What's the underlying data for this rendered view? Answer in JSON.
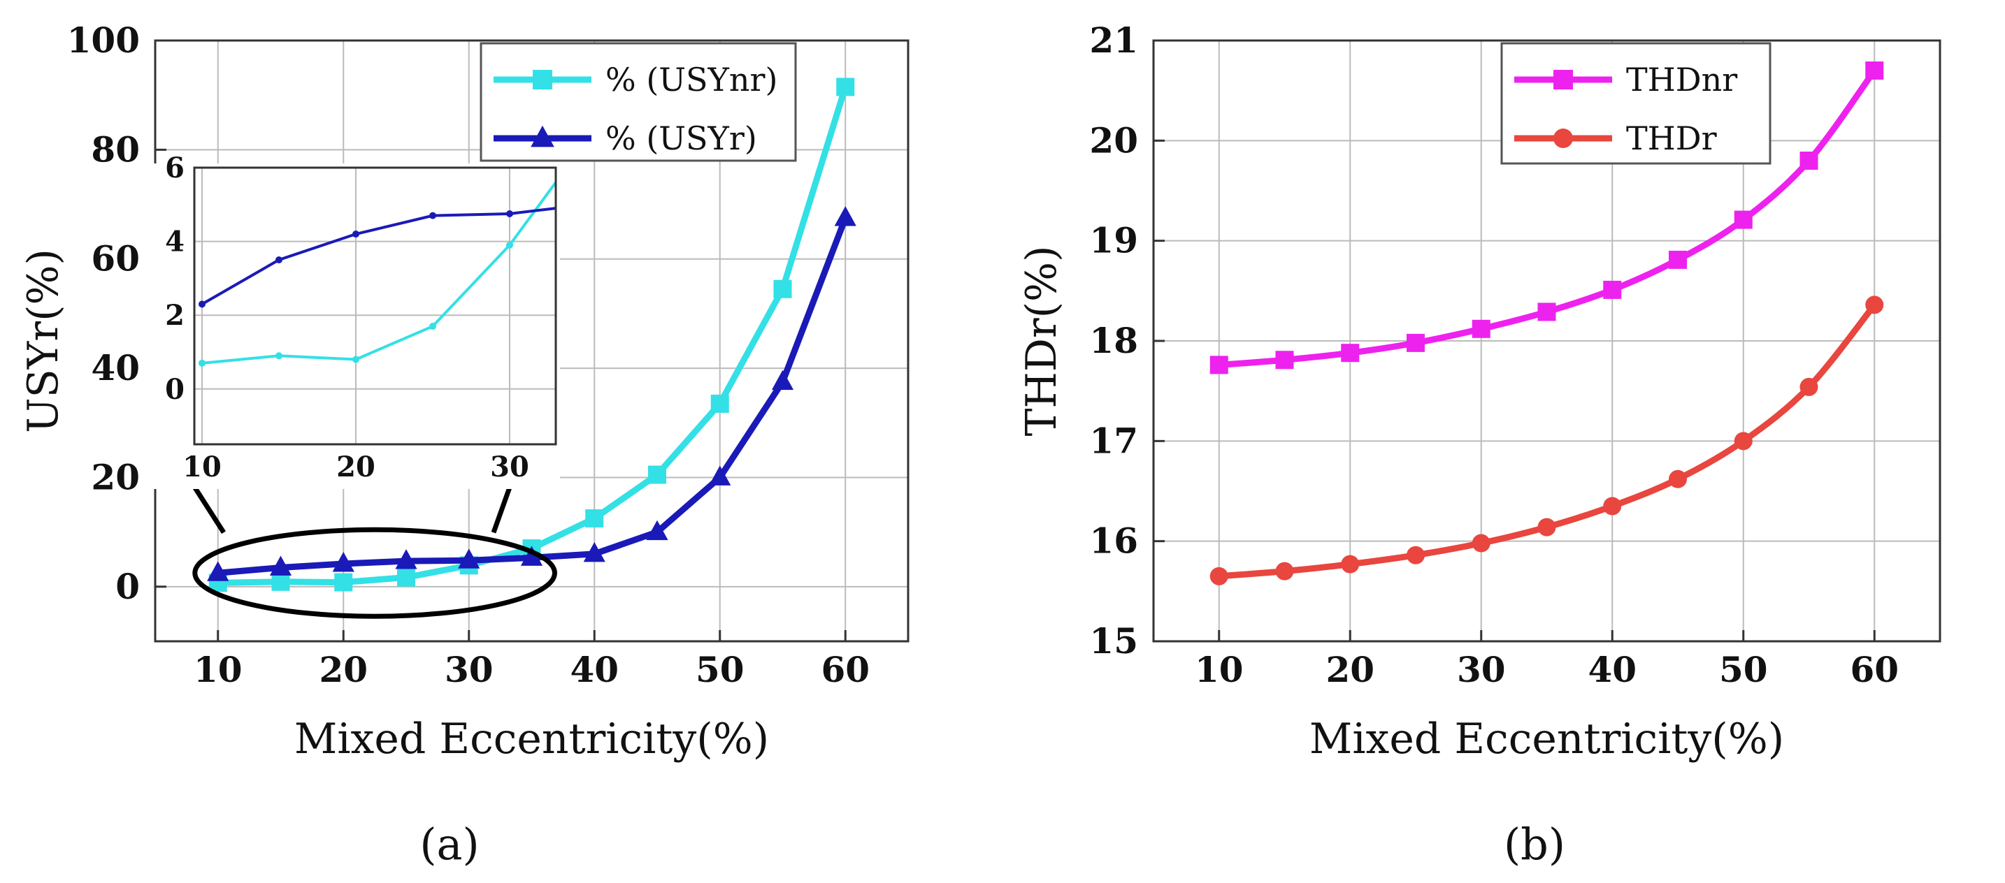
{
  "panel_labels": [
    "(a)",
    "(b)"
  ],
  "colors": {
    "usynr": "#33e0e6",
    "usyr": "#1a1ab8",
    "thdnr": "#ee22ee",
    "thdr": "#e8463e",
    "grid": "#bbbbbb",
    "ellipse": "#000000"
  },
  "chart_data": [
    {
      "type": "line",
      "id": "a",
      "xlabel": "Mixed Eccentricity(%)",
      "ylabel": "USYr(%)",
      "xlim": [
        5,
        65
      ],
      "ylim": [
        -10,
        100
      ],
      "xticks": [
        10,
        20,
        30,
        40,
        50,
        60
      ],
      "yticks": [
        0,
        20,
        40,
        60,
        80,
        100
      ],
      "grid": true,
      "legend_position": "top-right",
      "x": [
        10,
        15,
        20,
        25,
        30,
        35,
        40,
        45,
        50,
        55,
        60
      ],
      "series": [
        {
          "name": "% (USYnr)",
          "marker": "square",
          "color": "#33e0e6",
          "values": [
            0.7,
            0.9,
            0.8,
            1.7,
            3.9,
            7.0,
            12.5,
            20.5,
            33.5,
            54.5,
            91.5
          ]
        },
        {
          "name": "% (USYr)",
          "marker": "triangle",
          "color": "#1a1ab8",
          "values": [
            2.5,
            3.5,
            4.2,
            4.7,
            4.8,
            5.3,
            6.0,
            10.0,
            20.0,
            37.5,
            67.5
          ]
        }
      ],
      "inset": {
        "type": "line",
        "xlim": [
          9.5,
          33
        ],
        "ylim": [
          -1.5,
          6
        ],
        "xticks": [
          10,
          20,
          30
        ],
        "yticks": [
          0,
          2,
          4,
          6
        ],
        "x": [
          10,
          15,
          20,
          25,
          30,
          33
        ],
        "series": [
          {
            "name": "% (USYnr)",
            "color": "#33e0e6",
            "values": [
              0.7,
              0.9,
              0.8,
              1.7,
              3.9,
              5.6
            ]
          },
          {
            "name": "% (USYr)",
            "color": "#1a1ab8",
            "values": [
              2.3,
              3.5,
              4.2,
              4.7,
              4.75,
              4.9
            ]
          }
        ]
      }
    },
    {
      "type": "line",
      "id": "b",
      "xlabel": "Mixed Eccentricity(%)",
      "ylabel": "THDr(%)",
      "xlim": [
        5,
        65
      ],
      "ylim": [
        15,
        21
      ],
      "xticks": [
        10,
        20,
        30,
        40,
        50,
        60
      ],
      "yticks": [
        15,
        16,
        17,
        18,
        19,
        20,
        21
      ],
      "grid": true,
      "legend_position": "top-center",
      "x": [
        10,
        15,
        20,
        25,
        30,
        35,
        40,
        45,
        50,
        55,
        60
      ],
      "series": [
        {
          "name": "THDnr",
          "marker": "square",
          "color": "#ee22ee",
          "values": [
            17.76,
            17.81,
            17.88,
            17.98,
            18.12,
            18.29,
            18.51,
            18.81,
            19.21,
            19.8,
            20.7
          ]
        },
        {
          "name": "THDr",
          "marker": "circle",
          "color": "#e8463e",
          "values": [
            15.65,
            15.7,
            15.77,
            15.86,
            15.98,
            16.14,
            16.35,
            16.62,
            17.0,
            17.54,
            18.36
          ]
        }
      ]
    }
  ]
}
